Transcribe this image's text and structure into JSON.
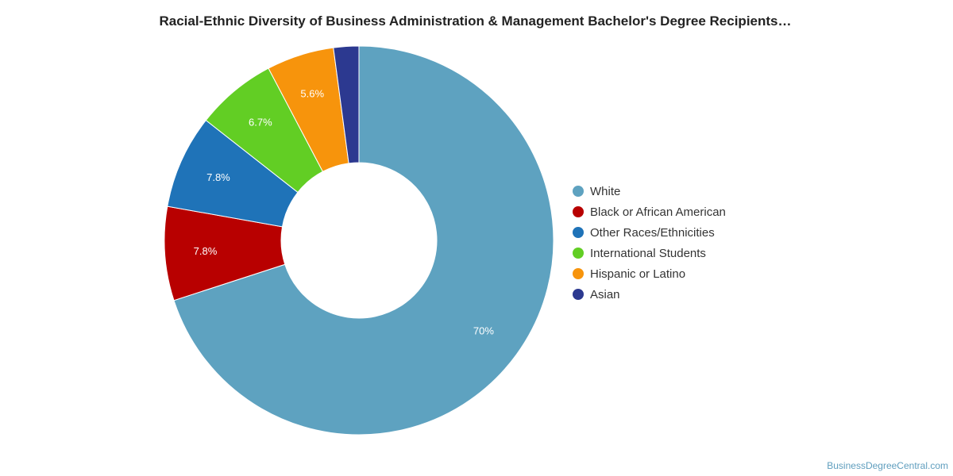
{
  "chart_data": {
    "type": "pie",
    "variant": "donut",
    "title": "Racial-Ethnic Diversity of Business Administration & Management Bachelor's Degree Recipients…",
    "slices": [
      {
        "name": "White",
        "value": 70,
        "label": "70%",
        "color": "#5ea2c0"
      },
      {
        "name": "Black or African American",
        "value": 7.8,
        "label": "7.8%",
        "color": "#b80000"
      },
      {
        "name": "Other Races/Ethnicities",
        "value": 7.8,
        "label": "7.8%",
        "color": "#1f73b8"
      },
      {
        "name": "International Students",
        "value": 6.7,
        "label": "6.7%",
        "color": "#62ce24"
      },
      {
        "name": "Hispanic or Latino",
        "value": 5.6,
        "label": "5.6%",
        "color": "#f7940c"
      },
      {
        "name": "Asian",
        "value": 2.1,
        "label": "",
        "color": "#2c3990"
      }
    ],
    "legend_position": "right",
    "start_angle": "12 o'clock, clockwise"
  },
  "credit": "BusinessDegreeCentral.com"
}
